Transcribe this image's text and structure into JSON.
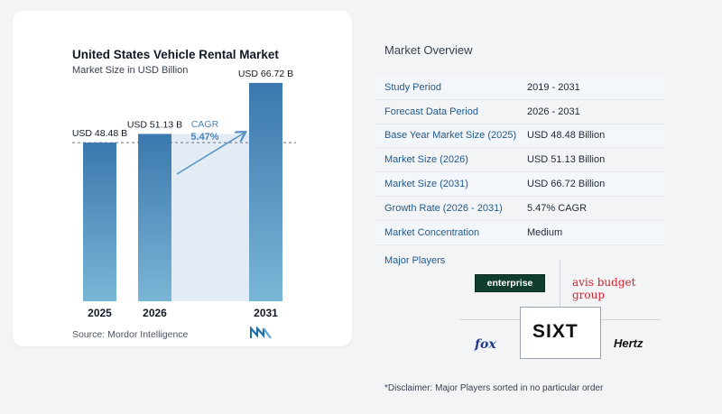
{
  "chart_data": {
    "type": "bar",
    "title": "United States Vehicle Rental Market",
    "subtitle": "Market Size in USD Billion",
    "categories": [
      "2025",
      "2026",
      "2031"
    ],
    "values": [
      48.48,
      51.13,
      66.72
    ],
    "value_labels": [
      "USD 48.48 B",
      "USD 51.13 B",
      "USD 66.72 B"
    ],
    "cagr_label": "CAGR",
    "cagr_value": "5.47%",
    "ylim": [
      0,
      70
    ],
    "grid": false,
    "colors": {
      "bar_top": "#3b78ae",
      "bar_bottom": "#7ab6d6",
      "band": "#e3ecf5",
      "arrow": "#5b95c6",
      "cagr_text": "#4a86bb"
    }
  },
  "source_text": "Source: Mordor Intelligence",
  "source_logo_icon": "mordor-intelligence-logo",
  "overview": {
    "title": "Market Overview",
    "rows": [
      {
        "key": "Study Period",
        "value": "2019 - 2031"
      },
      {
        "key": "Forecast Data Period",
        "value": "2026 - 2031"
      },
      {
        "key": "Base Year Market Size (2025)",
        "value": "USD 48.48 Billion"
      },
      {
        "key": "Market Size (2026)",
        "value": "USD 51.13 Billion"
      },
      {
        "key": "Market Size (2031)",
        "value": "USD 66.72 Billion"
      },
      {
        "key": "Growth Rate (2026 - 2031)",
        "value": "5.47% CAGR"
      },
      {
        "key": "Market Concentration",
        "value": "Medium"
      }
    ]
  },
  "players": {
    "title": "Major Players",
    "logos": {
      "enterprise": "enterprise",
      "avis": "avis budget group",
      "sixt": "SIXT",
      "fox": "fox",
      "hertz": "Hertz"
    }
  },
  "disclaimer": "*Disclaimer: Major Players sorted in no particular order"
}
